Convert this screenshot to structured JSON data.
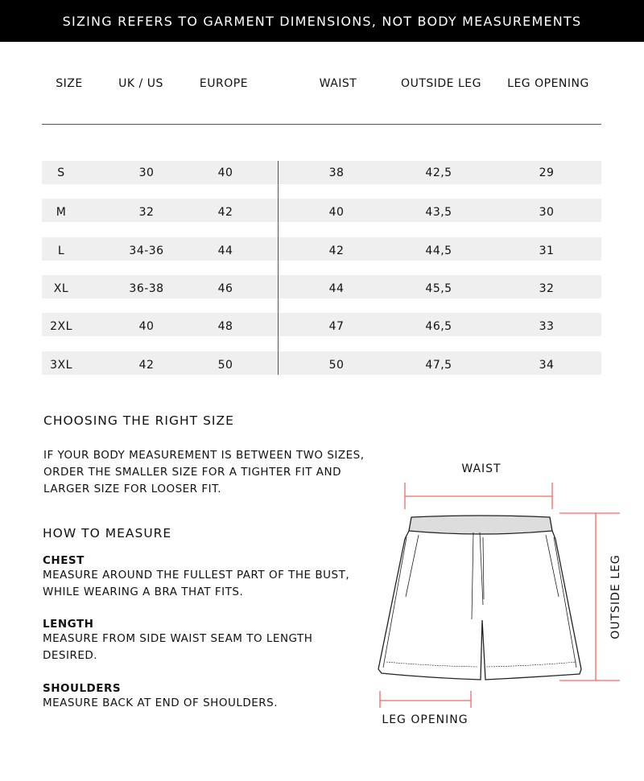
{
  "banner": "SIZING REFERS TO GARMENT DIMENSIONS, NOT BODY MEASUREMENTS",
  "table": {
    "headers": [
      "SIZE",
      "UK / US",
      "EUROPE",
      "WAIST",
      "OUTSIDE LEG",
      "LEG OPENING"
    ],
    "rows": [
      [
        "S",
        "30",
        "40",
        "38",
        "42,5",
        "29"
      ],
      [
        "M",
        "32",
        "42",
        "40",
        "43,5",
        "30"
      ],
      [
        "L",
        "34-36",
        "44",
        "42",
        "44,5",
        "31"
      ],
      [
        "XL",
        "36-38",
        "46",
        "44",
        "45,5",
        "32"
      ],
      [
        "2XL",
        "40",
        "48",
        "47",
        "46,5",
        "33"
      ],
      [
        "3XL",
        "42",
        "50",
        "50",
        "47,5",
        "34"
      ]
    ]
  },
  "choosing": {
    "title": "CHOOSING THE RIGHT SIZE",
    "lines": [
      "IF YOUR BODY MEASUREMENT IS BETWEEN TWO SIZES,",
      "ORDER THE SMALLER SIZE FOR A TIGHTER FIT AND",
      "LARGER SIZE FOR LOOSER FIT."
    ]
  },
  "how": {
    "title": "HOW TO MEASURE",
    "items": [
      {
        "name": "CHEST",
        "lines": [
          "MEASURE AROUND THE FULLEST PART OF THE BUST,",
          "WHILE WEARING A BRA THAT FITS."
        ]
      },
      {
        "name": "LENGTH",
        "lines": [
          "MEASURE FROM SIDE WAIST SEAM TO LENGTH",
          "DESIRED."
        ]
      },
      {
        "name": "SHOULDERS",
        "lines": [
          "MEASURE BACK AT END OF SHOULDERS."
        ]
      }
    ]
  },
  "diagram": {
    "waist": "WAIST",
    "outside_leg": "OUTSIDE LEG",
    "leg_opening": "LEG OPENING",
    "marker_color": "#f26b6b"
  }
}
